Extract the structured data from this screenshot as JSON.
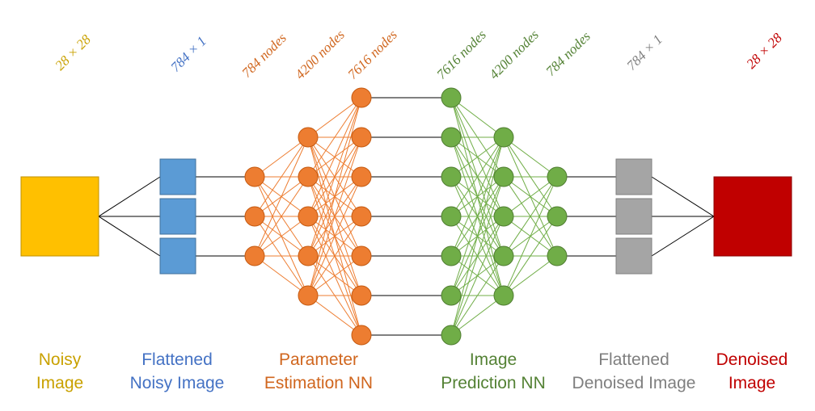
{
  "top_labels": {
    "noisy_dim": "28 × 28",
    "flat_noisy_dim": "784 × 1",
    "param_l1": "784 nodes",
    "param_l2": "4200 nodes",
    "param_l3": "7616 nodes",
    "pred_l1": "7616 nodes",
    "pred_l2": "4200 nodes",
    "pred_l3": "784 nodes",
    "flat_denoised_dim": "784 × 1",
    "denoised_dim": "28 × 28"
  },
  "captions": {
    "noisy_image": [
      "Noisy",
      "Image"
    ],
    "flattened_noisy": [
      "Flattened",
      "Noisy Image"
    ],
    "param_nn": [
      "Parameter",
      "Estimation NN"
    ],
    "pred_nn": [
      "Image",
      "Prediction NN"
    ],
    "flattened_denoised": [
      "Flattened",
      "Denoised Image"
    ],
    "denoised_image": [
      "Denoised",
      "Image"
    ]
  },
  "colors": {
    "noisy": "#FFC000",
    "noisy_text": "#C9A100",
    "flat_noisy": "#5B9BD5",
    "flat_noisy_text": "#4472C4",
    "param": "#ED7D31",
    "param_text": "#D0661E",
    "pred": "#70AD47",
    "pred_text": "#548235",
    "flat_denoised": "#A5A5A5",
    "flat_denoised_text": "#7F7F7F",
    "denoised": "#C00000"
  }
}
